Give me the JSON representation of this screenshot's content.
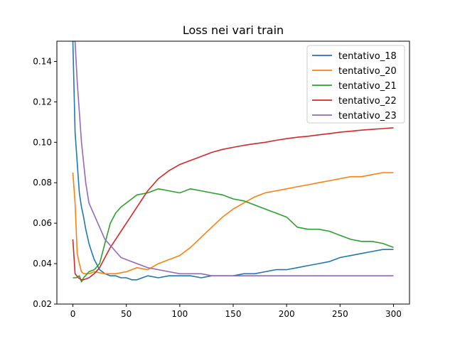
{
  "chart_data": {
    "type": "line",
    "title": "Loss nei vari train",
    "xlabel": "",
    "ylabel": "",
    "xlim": [
      -15,
      315
    ],
    "ylim": [
      0.02,
      0.15
    ],
    "xticks": [
      0,
      50,
      100,
      150,
      200,
      250,
      300
    ],
    "yticks": [
      0.02,
      0.04,
      0.06,
      0.08,
      0.1,
      0.12,
      0.14
    ],
    "ytick_labels": [
      "0.02",
      "0.04",
      "0.06",
      "0.08",
      "0.10",
      "0.12",
      "0.14"
    ],
    "grid": false,
    "legend": "top-right",
    "series": [
      {
        "name": "tentativo_18",
        "color": "#1f77b4",
        "x": [
          0,
          2,
          4,
          6,
          8,
          10,
          12,
          15,
          18,
          20,
          25,
          30,
          35,
          40,
          45,
          50,
          55,
          60,
          70,
          80,
          90,
          100,
          110,
          120,
          130,
          140,
          150,
          160,
          170,
          180,
          190,
          200,
          210,
          220,
          230,
          240,
          250,
          260,
          270,
          280,
          290,
          300
        ],
        "y": [
          0.15,
          0.105,
          0.09,
          0.075,
          0.068,
          0.063,
          0.057,
          0.05,
          0.045,
          0.042,
          0.037,
          0.035,
          0.034,
          0.034,
          0.033,
          0.033,
          0.032,
          0.032,
          0.034,
          0.033,
          0.034,
          0.034,
          0.034,
          0.033,
          0.034,
          0.034,
          0.034,
          0.035,
          0.035,
          0.036,
          0.037,
          0.037,
          0.038,
          0.039,
          0.04,
          0.041,
          0.043,
          0.044,
          0.045,
          0.046,
          0.047,
          0.047
        ]
      },
      {
        "name": "tentativo_20",
        "color": "#ff7f0e",
        "x": [
          0,
          2,
          4,
          6,
          8,
          10,
          15,
          20,
          30,
          40,
          50,
          60,
          70,
          80,
          90,
          100,
          110,
          120,
          130,
          140,
          150,
          160,
          170,
          180,
          190,
          200,
          210,
          220,
          230,
          240,
          250,
          260,
          270,
          280,
          290,
          300
        ],
        "y": [
          0.085,
          0.07,
          0.045,
          0.04,
          0.036,
          0.035,
          0.035,
          0.036,
          0.035,
          0.035,
          0.036,
          0.038,
          0.037,
          0.04,
          0.042,
          0.044,
          0.048,
          0.053,
          0.058,
          0.063,
          0.067,
          0.07,
          0.073,
          0.075,
          0.076,
          0.077,
          0.078,
          0.079,
          0.08,
          0.081,
          0.082,
          0.083,
          0.083,
          0.084,
          0.085,
          0.085
        ]
      },
      {
        "name": "tentativo_21",
        "color": "#2ca02c",
        "x": [
          0,
          3,
          6,
          8,
          10,
          15,
          20,
          25,
          30,
          35,
          40,
          45,
          50,
          55,
          60,
          70,
          80,
          90,
          100,
          110,
          120,
          130,
          140,
          150,
          160,
          170,
          180,
          190,
          200,
          210,
          220,
          230,
          240,
          250,
          260,
          270,
          280,
          290,
          300
        ],
        "y": [
          0.033,
          0.033,
          0.034,
          0.031,
          0.033,
          0.036,
          0.037,
          0.04,
          0.05,
          0.06,
          0.065,
          0.068,
          0.07,
          0.072,
          0.074,
          0.075,
          0.077,
          0.076,
          0.075,
          0.077,
          0.076,
          0.075,
          0.074,
          0.072,
          0.071,
          0.069,
          0.067,
          0.065,
          0.063,
          0.058,
          0.057,
          0.057,
          0.056,
          0.054,
          0.052,
          0.051,
          0.051,
          0.05,
          0.048
        ]
      },
      {
        "name": "tentativo_22",
        "color": "#d62728",
        "x": [
          0,
          2,
          5,
          8,
          10,
          15,
          20,
          25,
          30,
          35,
          40,
          45,
          50,
          55,
          60,
          65,
          70,
          80,
          90,
          100,
          110,
          120,
          130,
          140,
          150,
          160,
          170,
          180,
          190,
          200,
          210,
          220,
          230,
          240,
          250,
          260,
          270,
          280,
          290,
          300
        ],
        "y": [
          0.052,
          0.035,
          0.033,
          0.032,
          0.032,
          0.033,
          0.035,
          0.038,
          0.043,
          0.048,
          0.052,
          0.056,
          0.06,
          0.064,
          0.068,
          0.072,
          0.076,
          0.082,
          0.086,
          0.089,
          0.091,
          0.093,
          0.095,
          0.0965,
          0.0975,
          0.0985,
          0.0993,
          0.1,
          0.101,
          0.1018,
          0.1025,
          0.103,
          0.1037,
          0.1043,
          0.105,
          0.1055,
          0.106,
          0.1064,
          0.1068,
          0.1072
        ]
      },
      {
        "name": "tentativo_23",
        "color": "#9467bd",
        "x": [
          0,
          2,
          4,
          6,
          8,
          10,
          12,
          15,
          20,
          25,
          30,
          35,
          40,
          45,
          50,
          55,
          60,
          70,
          80,
          90,
          100,
          110,
          120,
          130,
          140,
          150,
          160,
          170,
          180,
          190,
          200,
          210,
          220,
          230,
          240,
          250,
          260,
          270,
          280,
          290,
          300
        ],
        "y": [
          0.15,
          0.15,
          0.13,
          0.115,
          0.1,
          0.09,
          0.08,
          0.07,
          0.064,
          0.058,
          0.052,
          0.049,
          0.046,
          0.043,
          0.042,
          0.041,
          0.04,
          0.038,
          0.037,
          0.036,
          0.035,
          0.035,
          0.035,
          0.034,
          0.034,
          0.034,
          0.034,
          0.034,
          0.034,
          0.034,
          0.034,
          0.034,
          0.034,
          0.034,
          0.034,
          0.034,
          0.034,
          0.034,
          0.034,
          0.034,
          0.034
        ]
      }
    ]
  }
}
